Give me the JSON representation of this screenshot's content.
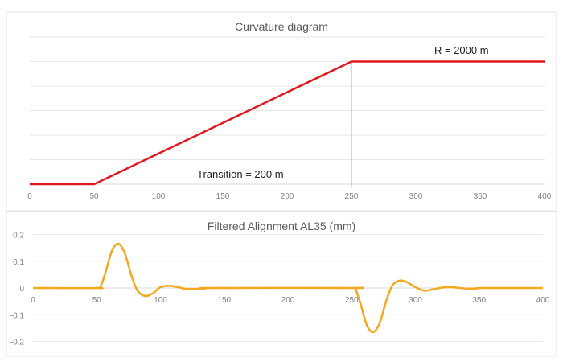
{
  "chart_data": [
    {
      "type": "line",
      "title": "Curvature diagram",
      "x": [
        0,
        50,
        250,
        400
      ],
      "values": [
        0,
        0,
        0.0005,
        0.0005
      ],
      "xlim": [
        0,
        400
      ],
      "ylim": [
        0,
        0.0006
      ],
      "xticks": [
        "0",
        "50",
        "100",
        "150",
        "200",
        "250",
        "300",
        "350",
        "400"
      ],
      "grid": true,
      "y_tick_labels_shown": false,
      "color": "#e0191e",
      "marker_line_x": 250,
      "annotations": {
        "transition": "Transition = 200 m",
        "radius": "R = 2000 m"
      }
    },
    {
      "type": "line",
      "title": "Filtered Alignment AL35 (mm)",
      "points": [
        [
          0,
          0
        ],
        [
          50,
          0
        ],
        [
          53,
          0.005
        ],
        [
          57,
          0.06
        ],
        [
          62,
          0.14
        ],
        [
          67,
          0.165
        ],
        [
          72,
          0.13
        ],
        [
          77,
          0.05
        ],
        [
          82,
          -0.01
        ],
        [
          88,
          -0.03
        ],
        [
          94,
          -0.02
        ],
        [
          100,
          0.003
        ],
        [
          107,
          0.008
        ],
        [
          114,
          0.003
        ],
        [
          120,
          -0.003
        ],
        [
          135,
          -0.002
        ],
        [
          140,
          0
        ],
        [
          250,
          0
        ],
        [
          253,
          -0.005
        ],
        [
          257,
          -0.06
        ],
        [
          262,
          -0.14
        ],
        [
          267,
          -0.165
        ],
        [
          272,
          -0.13
        ],
        [
          277,
          -0.05
        ],
        [
          282,
          0.01
        ],
        [
          288,
          0.028
        ],
        [
          294,
          0.02
        ],
        [
          300,
          0.003
        ],
        [
          307,
          -0.01
        ],
        [
          314,
          -0.005
        ],
        [
          320,
          0.001
        ],
        [
          327,
          0.003
        ],
        [
          335,
          0
        ],
        [
          340,
          -0.002
        ],
        [
          348,
          -0.002
        ],
        [
          352,
          0
        ],
        [
          400,
          0
        ]
      ],
      "xlim": [
        0,
        400
      ],
      "ylim": [
        -0.2,
        0.2
      ],
      "xticks": [
        "0",
        "50",
        "100",
        "150",
        "200",
        "250",
        "300",
        "350",
        "400"
      ],
      "yticks": [
        "0.2",
        "0.1",
        "0",
        "-0.1",
        "-0.2"
      ],
      "grid": true,
      "color": "#f4a81d"
    }
  ]
}
